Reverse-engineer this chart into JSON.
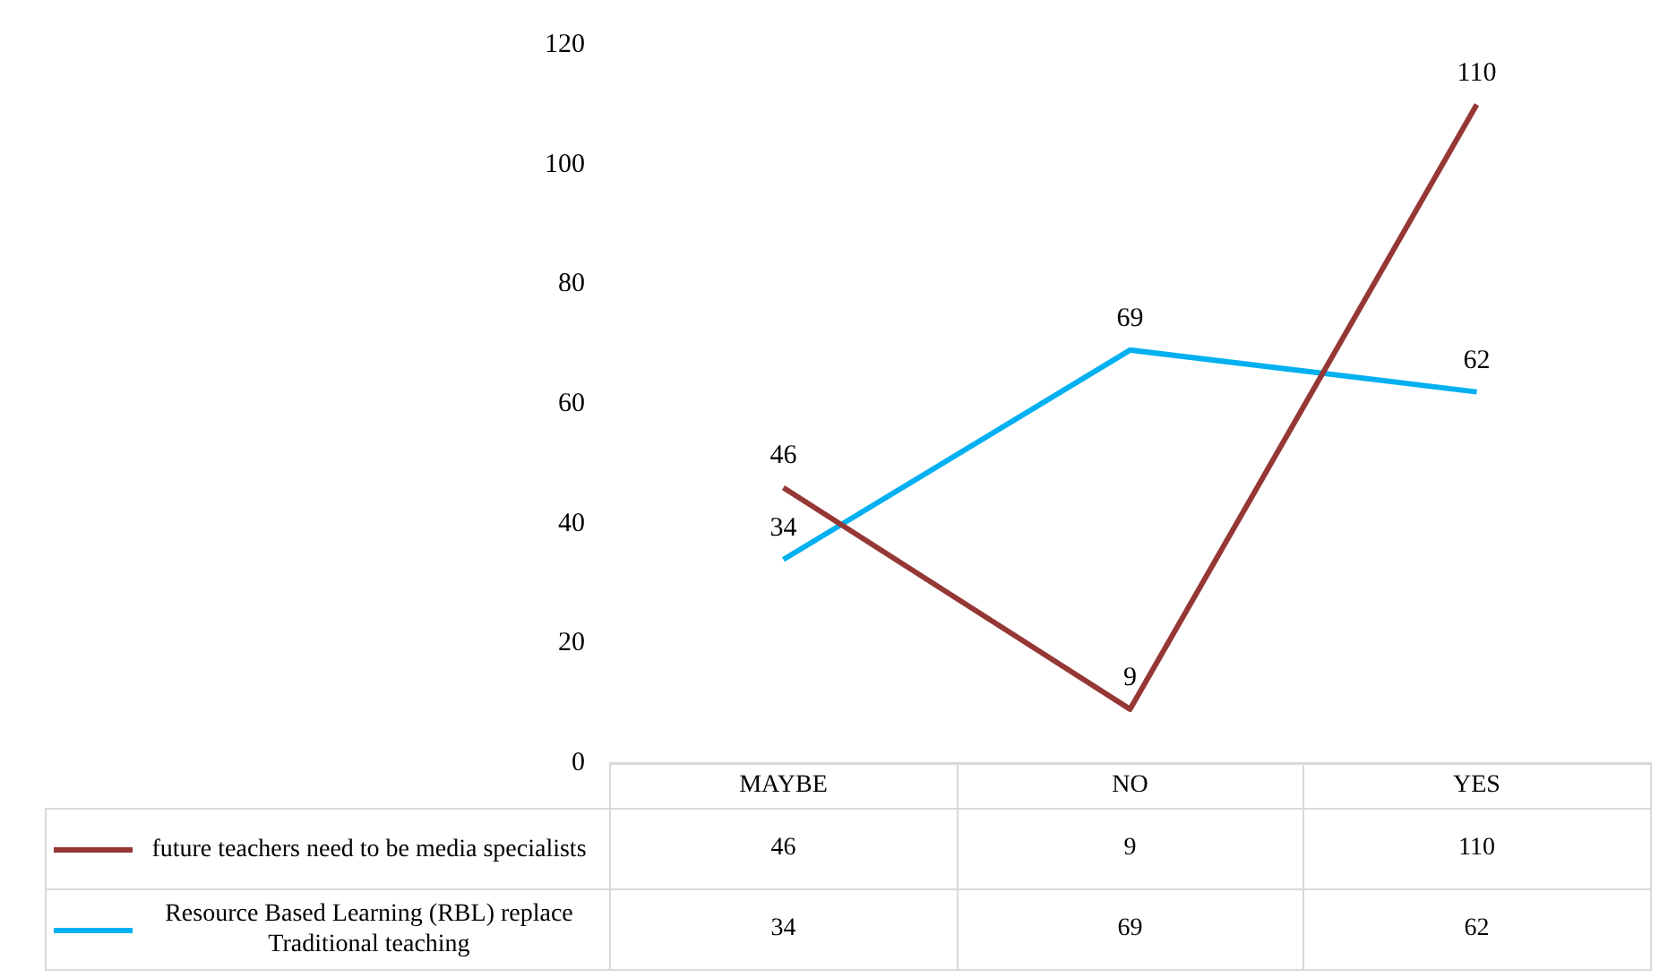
{
  "chart_data": {
    "type": "line",
    "categories": [
      "MAYBE",
      "NO",
      "YES"
    ],
    "series": [
      {
        "name": "future teachers need to be media specialists",
        "color": "#953735",
        "values": [
          46,
          9,
          110
        ]
      },
      {
        "name": "Resource Based Learning (RBL) replace Traditional teaching",
        "color": "#00b0f0",
        "values": [
          34,
          69,
          62
        ]
      }
    ],
    "annotations": [
      {
        "text": "46",
        "x": "MAYBE",
        "y": 46
      },
      {
        "text": "9",
        "x": "NO",
        "y": 9
      },
      {
        "text": "110",
        "x": "YES",
        "y": 110
      },
      {
        "text": "34",
        "x": "MAYBE",
        "y": 34
      },
      {
        "text": "69",
        "x": "NO",
        "y": 69
      },
      {
        "text": "62",
        "x": "YES",
        "y": 62
      }
    ],
    "ylim": [
      0,
      120
    ],
    "yticks": [
      0,
      20,
      40,
      60,
      80,
      100,
      120
    ],
    "grid": false,
    "legend": "bottom",
    "marker": "none",
    "line_style": "solid",
    "data_labels": true
  }
}
